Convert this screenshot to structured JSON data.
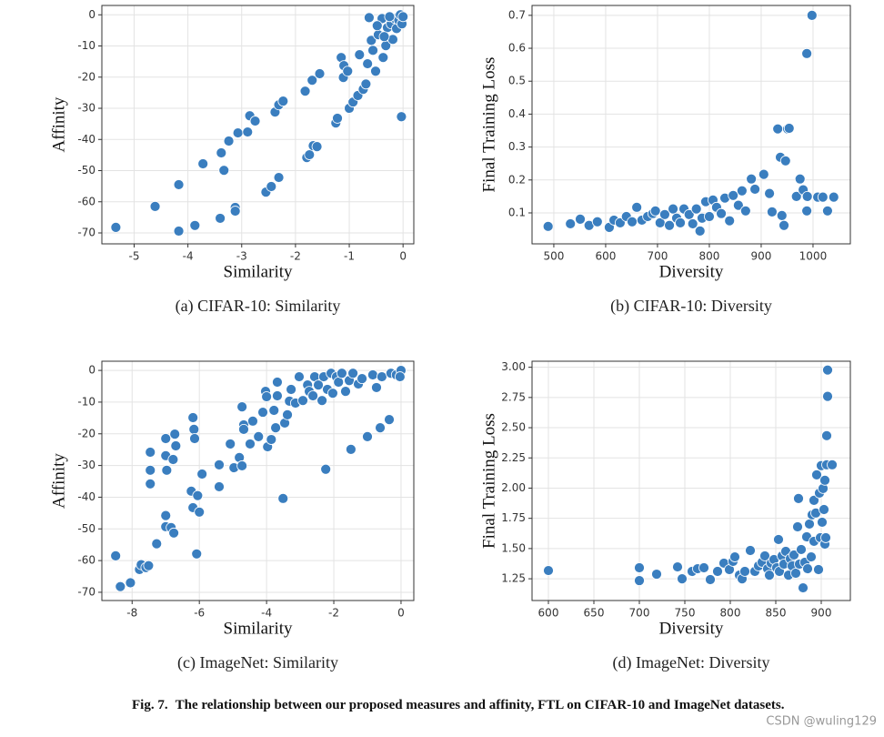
{
  "chart_data": [
    {
      "type": "scatter",
      "caption": "(a) CIFAR-10: Similarity",
      "x_label": "Similarity",
      "y_label": "Affinity",
      "color": "#3a7ebf",
      "grid": true,
      "xlim": [
        -5.6,
        0.2
      ],
      "ylim": [
        -73.5,
        3
      ],
      "xticks": [
        -5,
        -4,
        -3,
        -2,
        -1,
        0
      ],
      "yticks": [
        0,
        -10,
        -20,
        -30,
        -40,
        -50,
        -60,
        -70
      ],
      "x": [
        -5.34,
        -4.61,
        -4.17,
        -4.17,
        -3.87,
        -3.72,
        -3.4,
        -3.38,
        -3.33,
        -3.24,
        -3.12,
        -3.12,
        -3.07,
        -2.89,
        -2.85,
        -2.75,
        -2.55,
        -2.45,
        -2.38,
        -2.31,
        -2.31,
        -2.23,
        -1.79,
        -1.74,
        -1.67,
        -1.6,
        -1.82,
        -1.69,
        -1.55,
        -1.25,
        -1.22,
        -1.11,
        -1.15,
        -1.1,
        -1.03,
        -1.0,
        -0.93,
        -0.84,
        -0.81,
        -0.74,
        -0.69,
        -0.66,
        -0.59,
        -0.56,
        -0.63,
        -0.51,
        -0.46,
        -0.37,
        -0.32,
        -0.29,
        -0.22,
        -0.19,
        -0.15,
        -0.12,
        -0.08,
        -0.03,
        -0.05,
        -0.02,
        0,
        -0.39,
        -0.25,
        -0.48,
        -0.35
      ],
      "y": [
        -68.2,
        -61.5,
        -54.5,
        -69.4,
        -67.6,
        -47.8,
        -65.3,
        -44.3,
        -49.9,
        -40.5,
        -61.8,
        -63,
        -37.9,
        -37.6,
        -32.4,
        -34.1,
        -56.9,
        -55.1,
        -31.2,
        -52.2,
        -28.9,
        -27.7,
        -45.8,
        -44.9,
        -42,
        -42.3,
        -24.5,
        -21,
        -18.9,
        -34.7,
        -33.2,
        -20.1,
        -13.7,
        -16.3,
        -18.1,
        -30,
        -28,
        -25.9,
        -12.8,
        -23.9,
        -22.2,
        -15.7,
        -8.2,
        -11.4,
        -0.9,
        -18.1,
        -6.4,
        -13.7,
        -9.9,
        -4.1,
        -2.9,
        -7.9,
        -1.2,
        -4.4,
        -1.7,
        -32.7,
        0,
        -2.9,
        -0.6,
        -1.2,
        -0.6,
        -3.5,
        -7
      ]
    },
    {
      "type": "scatter",
      "caption": "(b) CIFAR-10: Diversity",
      "x_label": "Diversity",
      "y_label": "Final Training Loss",
      "color": "#3a7ebf",
      "grid": true,
      "xlim": [
        458,
        1072
      ],
      "ylim": [
        0.006,
        0.73
      ],
      "xticks": [
        500,
        600,
        700,
        800,
        900,
        1000
      ],
      "yticks": [
        0.1,
        0.2,
        0.3,
        0.4,
        0.5,
        0.6,
        0.7
      ],
      "x": [
        489,
        532,
        551,
        568,
        584,
        607,
        616,
        628,
        640,
        651,
        660,
        670,
        681,
        691,
        696,
        705,
        714,
        723,
        730,
        737,
        744,
        751,
        761,
        768,
        775,
        782,
        786,
        793,
        800,
        807,
        814,
        823,
        830,
        839,
        846,
        856,
        863,
        870,
        881,
        888,
        905,
        916,
        921,
        932,
        937,
        940,
        944,
        947,
        951,
        954,
        968,
        975,
        981,
        988,
        988,
        989,
        998,
        1009,
        1019,
        1028,
        1040
      ],
      "y": [
        0.059,
        0.067,
        0.081,
        0.062,
        0.073,
        0.056,
        0.078,
        0.07,
        0.089,
        0.073,
        0.117,
        0.078,
        0.089,
        0.098,
        0.106,
        0.07,
        0.095,
        0.062,
        0.112,
        0.084,
        0.07,
        0.112,
        0.095,
        0.067,
        0.112,
        0.045,
        0.084,
        0.134,
        0.089,
        0.139,
        0.117,
        0.098,
        0.145,
        0.076,
        0.153,
        0.123,
        0.167,
        0.106,
        0.203,
        0.172,
        0.217,
        0.159,
        0.103,
        0.355,
        0.269,
        0.092,
        0.062,
        0.258,
        0.355,
        0.357,
        0.15,
        0.203,
        0.17,
        0.106,
        0.584,
        0.15,
        0.7,
        0.148,
        0.148,
        0.106,
        0.148
      ]
    },
    {
      "type": "scatter",
      "caption": "(c) ImageNet: Similarity",
      "x_label": "Similarity",
      "y_label": "Affinity",
      "color": "#3a7ebf",
      "grid": true,
      "xlim": [
        -8.9,
        0.38
      ],
      "ylim": [
        -72.6,
        2.9
      ],
      "xticks": [
        -8,
        -6,
        -4,
        -2,
        0
      ],
      "yticks": [
        0,
        -10,
        -20,
        -30,
        -40,
        -50,
        -60,
        -70
      ],
      "x": [
        -8.49,
        -8.35,
        -8.05,
        -7.78,
        -7.73,
        -7.59,
        -7.51,
        -7.46,
        -7.46,
        -7.46,
        -7.27,
        -7.0,
        -7.0,
        -6.97,
        -7.0,
        -7.0,
        -6.84,
        -6.76,
        -6.73,
        -6.7,
        -6.78,
        -6.19,
        -6.16,
        -6.14,
        -6.24,
        -6.19,
        -6.05,
        -6.0,
        -6.08,
        -5.92,
        -5.41,
        -5.41,
        -5.08,
        -4.97,
        -4.81,
        -4.73,
        -4.73,
        -4.68,
        -4.68,
        -4.49,
        -4.41,
        -4.24,
        -4.11,
        -4.03,
        -4.0,
        -3.97,
        -3.86,
        -3.78,
        -3.73,
        -3.68,
        -3.68,
        -3.51,
        -3.46,
        -3.38,
        -3.32,
        -3.27,
        -3.14,
        -3.03,
        -2.92,
        -2.78,
        -2.73,
        -2.62,
        -2.57,
        -2.46,
        -2.35,
        -2.3,
        -2.24,
        -2.19,
        -2.08,
        -2.03,
        -1.92,
        -1.86,
        -1.76,
        -1.65,
        -1.54,
        -1.49,
        -1.43,
        -1.27,
        -1.16,
        -1.0,
        -0.84,
        -0.73,
        -0.62,
        -0.57,
        -0.35,
        -0.3,
        -0.14,
        0,
        -0.03
      ],
      "y": [
        -58.5,
        -68.2,
        -67,
        -62.8,
        -61.3,
        -62.2,
        -61.6,
        -25.8,
        -31.5,
        -35.8,
        -54.7,
        -21.5,
        -26.9,
        -31.5,
        -45.8,
        -49.3,
        -49.6,
        -51.3,
        -20.1,
        -23.8,
        -28.1,
        -14.9,
        -18.6,
        -21.5,
        -38.1,
        -43.3,
        -39.5,
        -44.7,
        -57.9,
        -32.7,
        -36.7,
        -29.8,
        -23.2,
        -30.7,
        -27.5,
        -11.5,
        -30.1,
        -17.2,
        -18.6,
        -23.2,
        -16,
        -20.9,
        -13.2,
        -6.6,
        -8.3,
        -24.1,
        -21.8,
        -12.6,
        -18.1,
        -3.7,
        -8,
        -40.4,
        -16.6,
        -14,
        -9.7,
        -6,
        -10.3,
        -2,
        -9.5,
        -4.6,
        -6.6,
        -8,
        -2,
        -4.6,
        -9.5,
        -2,
        -31.2,
        -6,
        -0.9,
        -7.2,
        -2,
        -3.7,
        -0.9,
        -6.6,
        -3.2,
        -24.9,
        -0.9,
        -4.3,
        -2.6,
        -20.9,
        -1.4,
        -5.4,
        -18.1,
        -2,
        -15.5,
        -0.9,
        -1.4,
        0,
        -2
      ]
    },
    {
      "type": "scatter",
      "caption": "(d) ImageNet: Diversity",
      "x_label": "Diversity",
      "y_label": "Final Training Loss",
      "color": "#3a7ebf",
      "grid": true,
      "xlim": [
        582,
        932
      ],
      "ylim": [
        1.07,
        3.05
      ],
      "xticks": [
        600,
        650,
        700,
        750,
        800,
        850,
        900
      ],
      "yticks": [
        1.25,
        {
          "value": 1.5,
          "label": "1.50"
        },
        1.75,
        {
          "value": 2,
          "label": "2.00"
        },
        2.25,
        {
          "value": 2.5,
          "label": "2.50"
        },
        2.75,
        {
          "value": 3,
          "label": "3.00"
        }
      ],
      "x": [
        600,
        700,
        700,
        719,
        742,
        747,
        758,
        764,
        771,
        778,
        786,
        793,
        799,
        803,
        805,
        810,
        813,
        816,
        822,
        827,
        831,
        835,
        838,
        841,
        843,
        845,
        848,
        851,
        853,
        854,
        857,
        859,
        861,
        864,
        866,
        868,
        870,
        872,
        874,
        875,
        876,
        878,
        880,
        882,
        884,
        885,
        887,
        889,
        890,
        892,
        892,
        894,
        895,
        897,
        898,
        899,
        900,
        901,
        902,
        903,
        904,
        905,
        906,
        906,
        907,
        907,
        912,
        904
      ],
      "y": [
        1.318,
        1.341,
        1.235,
        1.288,
        1.348,
        1.25,
        1.311,
        1.333,
        1.341,
        1.243,
        1.311,
        1.379,
        1.326,
        1.394,
        1.431,
        1.28,
        1.25,
        1.311,
        1.484,
        1.311,
        1.356,
        1.386,
        1.439,
        1.333,
        1.28,
        1.379,
        1.409,
        1.341,
        1.575,
        1.311,
        1.439,
        1.371,
        1.477,
        1.28,
        1.416,
        1.356,
        1.447,
        1.296,
        1.68,
        1.914,
        1.371,
        1.492,
        1.175,
        1.386,
        1.597,
        1.333,
        1.703,
        1.431,
        1.779,
        1.899,
        1.56,
        1.794,
        2.11,
        1.326,
        1.959,
        1.59,
        2.186,
        1.718,
        1.997,
        1.823,
        1.537,
        1.59,
        2.434,
        2.193,
        2.759,
        2.977,
        2.193,
        2.065
      ]
    }
  ],
  "figure_caption": {
    "label": "Fig. 7.",
    "text": "The relationship between our proposed measures and affinity, FTL on CIFAR-10 and ImageNet datasets."
  },
  "watermark": "CSDN @wuling129"
}
